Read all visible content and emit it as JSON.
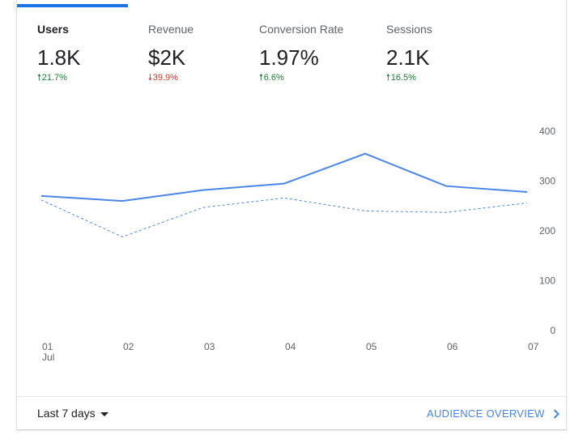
{
  "metrics": [
    {
      "label": "Users",
      "value": "1.8K",
      "change": "21.7%",
      "direction": "up"
    },
    {
      "label": "Revenue",
      "value": "$2K",
      "change": "39.9%",
      "direction": "down"
    },
    {
      "label": "Conversion Rate",
      "value": "1.97%",
      "change": "6.6%",
      "direction": "up"
    },
    {
      "label": "Sessions",
      "value": "2.1K",
      "change": "16.5%",
      "direction": "up"
    }
  ],
  "colors": {
    "accent": "#1a73e8",
    "series_line": "#4a86e8",
    "up": "#188038",
    "down": "#d93025"
  },
  "icons": {
    "up": "arrow-up-icon",
    "down": "arrow-down-icon",
    "dropdown": "caret-down-icon",
    "link": "chevron-right-icon"
  },
  "chart_data": {
    "type": "line",
    "x": [
      "01",
      "02",
      "03",
      "04",
      "05",
      "06",
      "07"
    ],
    "x_sublabel": "Jul",
    "y_ticks": [
      "0",
      "100",
      "200",
      "300",
      "400"
    ],
    "ylim": [
      0,
      400
    ],
    "grid": false,
    "series": [
      {
        "style": "solid",
        "values": [
          270,
          260,
          282,
          295,
          355,
          290,
          278
        ]
      },
      {
        "style": "dashed",
        "values": [
          262,
          188,
          247,
          266,
          240,
          237,
          256
        ]
      }
    ]
  },
  "footer": {
    "range_label": "Last 7 days",
    "link_label": "AUDIENCE OVERVIEW"
  }
}
